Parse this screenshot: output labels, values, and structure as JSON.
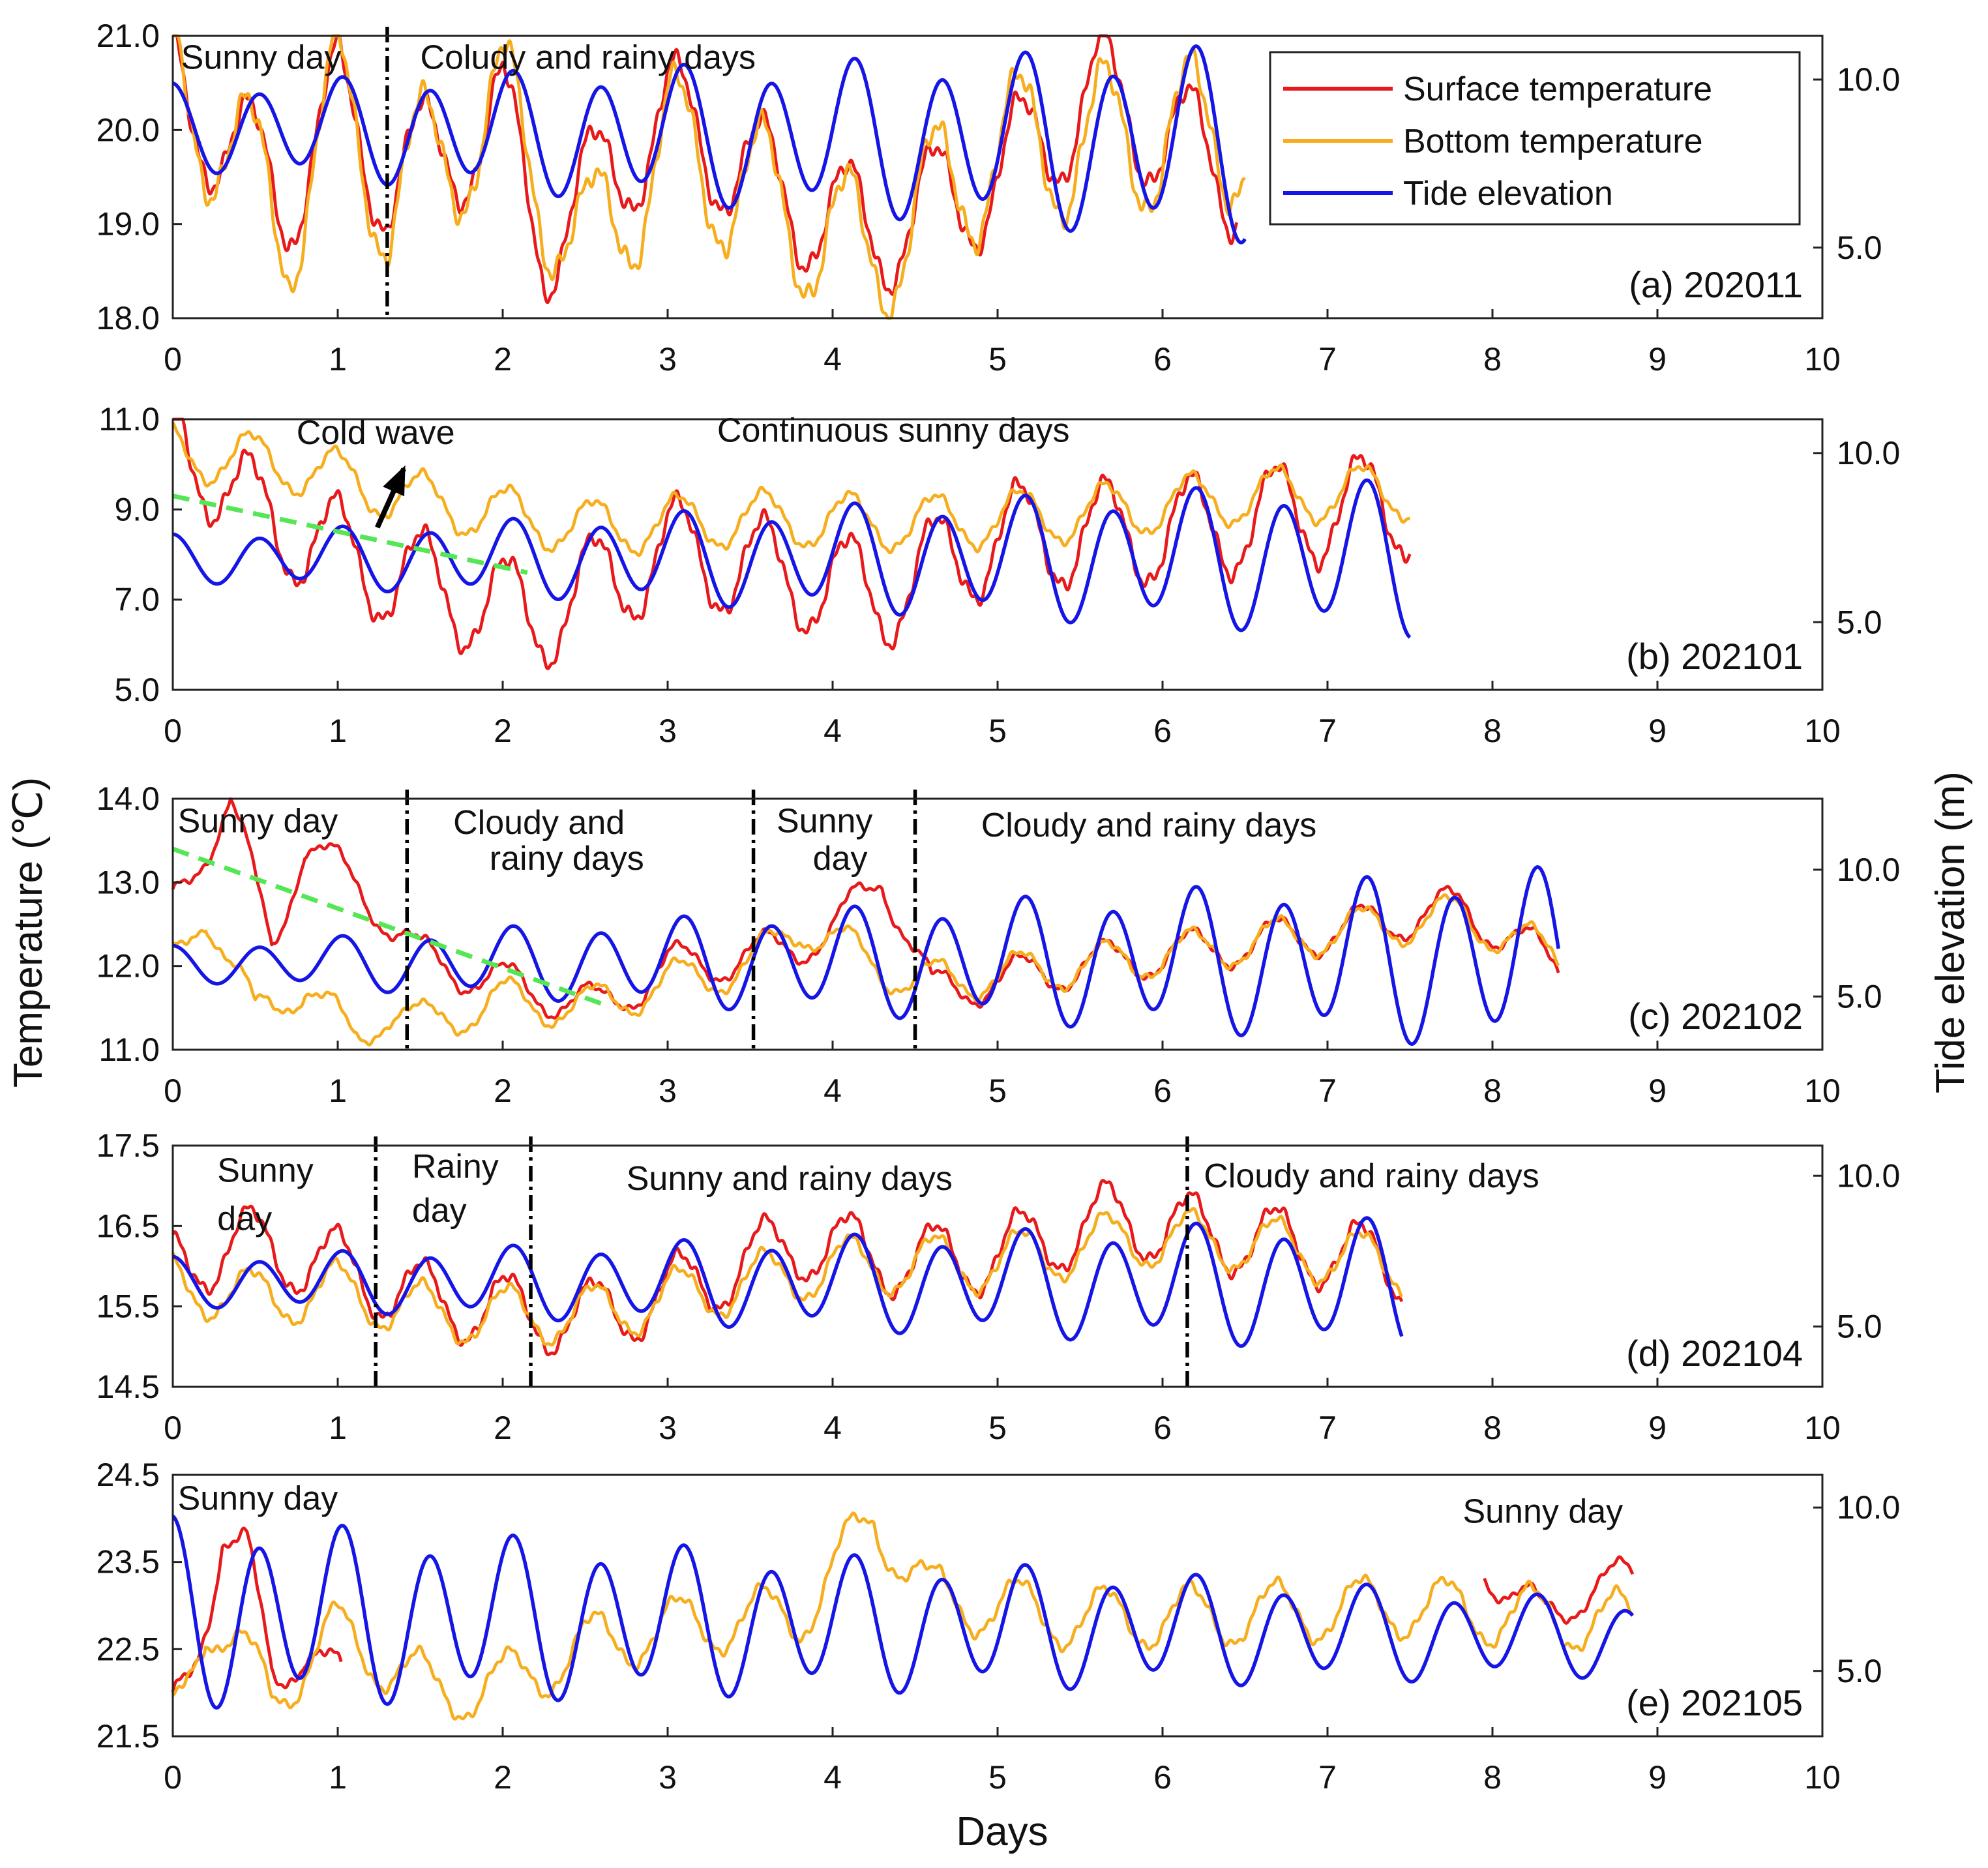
{
  "colors": {
    "surface": "#e8191b",
    "bottom": "#f6ae1e",
    "tide": "#1515e6",
    "trend": "#55e655",
    "divider": "#000000"
  },
  "axes": {
    "xlabel": "Days",
    "ylabel_left": "Temperature (℃)",
    "ylabel_right": "Tide elevation (m)"
  },
  "legend": [
    {
      "label": "Surface  temperature",
      "key": "surface"
    },
    {
      "label": "Bottom temperature",
      "key": "bottom"
    },
    {
      "label": "Tide elevation",
      "key": "tide"
    }
  ],
  "chart_data": [
    {
      "type": "line",
      "panel_label": "(a) 202011",
      "xlim": [
        0,
        10
      ],
      "x_ticks": [
        "0",
        "1",
        "2",
        "3",
        "4",
        "5",
        "6",
        "7",
        "8",
        "9",
        "10"
      ],
      "ylim": [
        18.0,
        21.0
      ],
      "y_ticks": [
        "18.0",
        "19.0",
        "20.0",
        "21.0"
      ],
      "y2lim": [
        2.9,
        11.3
      ],
      "y2_ticks": [
        "5.0",
        "10.0"
      ],
      "dividers": [
        1.3
      ],
      "annotations": [
        {
          "text": "Sunny day",
          "x": 0.05,
          "y": 20.65
        },
        {
          "text": "Coludy and rainy days",
          "x": 1.5,
          "y": 20.65
        }
      ],
      "series": [
        {
          "name": "Surface temperature",
          "key": "surface",
          "end": 6.45,
          "mean": 19.75,
          "amp": 0.65,
          "phase": 0.55,
          "anchors": [
            [
              0,
              20.55
            ],
            [
              0.3,
              19.9
            ],
            [
              0.7,
              19.3
            ],
            [
              1.0,
              20.3
            ],
            [
              1.3,
              19.45
            ],
            [
              2.0,
              20.1
            ],
            [
              2.25,
              18.85
            ],
            [
              3.0,
              20.15
            ],
            [
              3.8,
              19.2
            ],
            [
              4.25,
              18.9
            ],
            [
              5.0,
              19.5
            ],
            [
              5.6,
              20.4
            ],
            [
              6.4,
              19.55
            ]
          ]
        },
        {
          "name": "Bottom temperature",
          "key": "bottom",
          "end": 6.5,
          "mean": 19.55,
          "amp": 0.8,
          "phase": 0.55,
          "anchors": [
            [
              0,
              20.6
            ],
            [
              0.7,
              19.0
            ],
            [
              1.0,
              20.3
            ],
            [
              1.3,
              19.3
            ],
            [
              2.0,
              20.2
            ],
            [
              2.5,
              18.65
            ],
            [
              3.0,
              19.85
            ],
            [
              4.2,
              18.65
            ],
            [
              5.0,
              19.8
            ],
            [
              6.45,
              20.0
            ]
          ]
        },
        {
          "name": "Tide elevation",
          "key": "tide",
          "end": 6.5,
          "mean": 7.8,
          "amp": 1.1,
          "amp_end": 2.5,
          "phase": 0,
          "anchors": [
            [
              0,
              8.6
            ],
            [
              6.5,
              8.1
            ]
          ]
        }
      ]
    },
    {
      "type": "line",
      "panel_label": "(b) 202101",
      "xlim": [
        0,
        10
      ],
      "x_ticks": [
        "0",
        "1",
        "2",
        "3",
        "4",
        "5",
        "6",
        "7",
        "8",
        "9",
        "10"
      ],
      "ylim": [
        5.0,
        11.0
      ],
      "y_ticks": [
        "5.0",
        "7.0",
        "9.0",
        "11.0"
      ],
      "y2lim": [
        3.0,
        11.0
      ],
      "y2_ticks": [
        "5.0",
        "10.0"
      ],
      "dividers": [],
      "trend": [
        [
          0,
          9.3
        ],
        [
          2.15,
          7.6
        ]
      ],
      "annotations": [
        {
          "text": "Cold wave",
          "x": 0.75,
          "y": 10.45
        },
        {
          "text": "Continuous  sunny days",
          "x": 3.3,
          "y": 10.5
        }
      ],
      "arrow": {
        "from": [
          1.24,
          8.6
        ],
        "to": [
          1.4,
          9.9
        ]
      },
      "series": [
        {
          "name": "Surface temperature",
          "key": "surface",
          "end": 7.5,
          "mean": 8.2,
          "amp": 1.15,
          "phase": 0.5,
          "anchors": [
            [
              0,
              10.8
            ],
            [
              0.5,
              8.9
            ],
            [
              1.3,
              7.6
            ],
            [
              2.2,
              6.6
            ],
            [
              3.0,
              8.1
            ],
            [
              4.3,
              7.1
            ],
            [
              5.0,
              8.4
            ],
            [
              6.0,
              8.5
            ],
            [
              7.0,
              9.0
            ],
            [
              7.5,
              9.1
            ]
          ]
        },
        {
          "name": "Bottom temperature",
          "key": "bottom",
          "end": 7.5,
          "mean": 9.0,
          "amp": 0.6,
          "phase": 0.5,
          "anchors": [
            [
              0,
              10.3
            ],
            [
              0.7,
              10.0
            ],
            [
              1.5,
              9.2
            ],
            [
              2.5,
              8.6
            ],
            [
              3.5,
              8.8
            ],
            [
              4.5,
              8.7
            ],
            [
              5.5,
              8.9
            ],
            [
              6.5,
              9.3
            ],
            [
              7.5,
              9.4
            ]
          ]
        },
        {
          "name": "Tide elevation",
          "key": "tide",
          "end": 7.5,
          "mean": 6.9,
          "amp": 0.6,
          "amp_end": 2.0,
          "phase": 0,
          "anchors": [
            [
              0,
              6.9
            ],
            [
              7.5,
              6.9
            ]
          ]
        }
      ]
    },
    {
      "type": "line",
      "panel_label": "(c) 202102",
      "xlim": [
        0,
        10
      ],
      "x_ticks": [
        "0",
        "1",
        "2",
        "3",
        "4",
        "5",
        "6",
        "7",
        "8",
        "9",
        "10"
      ],
      "ylim": [
        11.0,
        14.0
      ],
      "y_ticks": [
        "11.0",
        "12.0",
        "13.0",
        "14.0"
      ],
      "y2lim": [
        2.9,
        12.8
      ],
      "y2_ticks": [
        "5.0",
        "10.0"
      ],
      "dividers": [
        1.42,
        3.52,
        4.5
      ],
      "trend": [
        [
          0,
          13.4
        ],
        [
          2.6,
          11.55
        ]
      ],
      "annotations": [
        {
          "text": "Sunny day",
          "x": 0.03,
          "y": 13.6
        },
        {
          "text": "Cloudy and",
          "x": 1.7,
          "y": 13.58
        },
        {
          "text": "rainy days",
          "x": 1.92,
          "y": 13.15
        },
        {
          "text": "Sunny",
          "x": 3.66,
          "y": 13.6
        },
        {
          "text": "day",
          "x": 3.88,
          "y": 13.15
        },
        {
          "text": "Cloudy and rainy days",
          "x": 4.9,
          "y": 13.55
        }
      ],
      "series": [
        {
          "name": "Surface temperature",
          "key": "surface",
          "end": 8.4,
          "mean": 12.2,
          "amp": 0.25,
          "phase": 0.5,
          "anchors": [
            [
              0,
              12.7
            ],
            [
              0.35,
              14.0
            ],
            [
              0.6,
              12.2
            ],
            [
              0.8,
              13.5
            ],
            [
              1.2,
              12.8
            ],
            [
              1.5,
              12.1
            ],
            [
              2.0,
              11.8
            ],
            [
              2.6,
              11.5
            ],
            [
              3.0,
              12.0
            ],
            [
              3.5,
              12.1
            ],
            [
              4.0,
              12.4
            ],
            [
              4.3,
              13.1
            ],
            [
              4.6,
              11.7
            ],
            [
              5.5,
              12.0
            ],
            [
              7.0,
              12.4
            ],
            [
              7.8,
              12.7
            ],
            [
              8.4,
              12.0
            ]
          ]
        },
        {
          "name": "Bottom temperature",
          "key": "bottom",
          "end": 8.4,
          "mean": 12.0,
          "amp": 0.25,
          "phase": 0.5,
          "anchors": [
            [
              0,
              12.0
            ],
            [
              0.2,
              12.7
            ],
            [
              0.5,
              11.4
            ],
            [
              0.8,
              11.8
            ],
            [
              1.1,
              11.1
            ],
            [
              1.3,
              11.5
            ],
            [
              1.5,
              11.3
            ],
            [
              2.0,
              11.6
            ],
            [
              2.5,
              11.5
            ],
            [
              3.0,
              11.8
            ],
            [
              3.5,
              12.0
            ],
            [
              3.8,
              12.5
            ],
            [
              4.5,
              11.8
            ],
            [
              5.5,
              12.0
            ],
            [
              7.0,
              12.4
            ],
            [
              7.8,
              12.6
            ],
            [
              8.4,
              12.1
            ]
          ]
        },
        {
          "name": "Tide elevation",
          "key": "tide",
          "end": 8.4,
          "mean": 6.5,
          "amp": 0.6,
          "amp_end": 3.1,
          "phase": 0,
          "anchors": [
            [
              0,
              6.3
            ],
            [
              8.4,
              6.5
            ]
          ]
        }
      ]
    },
    {
      "type": "line",
      "panel_label": "(d) 202104",
      "xlim": [
        0,
        10
      ],
      "x_ticks": [
        "0",
        "1",
        "2",
        "3",
        "4",
        "5",
        "6",
        "7",
        "8",
        "9",
        "10"
      ],
      "ylim": [
        14.5,
        17.5
      ],
      "y_ticks": [
        "14.5",
        "15.5",
        "16.5",
        "17.5"
      ],
      "y2lim": [
        3.0,
        11.0
      ],
      "y2_ticks": [
        "5.0",
        "10.0"
      ],
      "dividers": [
        1.23,
        2.17,
        6.15
      ],
      "annotations": [
        {
          "text": "Sunny",
          "x": 0.27,
          "y": 17.05
        },
        {
          "text": "day",
          "x": 0.27,
          "y": 16.45
        },
        {
          "text": "Rainy",
          "x": 1.45,
          "y": 17.1
        },
        {
          "text": "day",
          "x": 1.45,
          "y": 16.55
        },
        {
          "text": "Sunny and rainy days",
          "x": 2.75,
          "y": 16.95
        },
        {
          "text": "Cloudy and rainy days",
          "x": 6.25,
          "y": 16.98
        }
      ],
      "series": [
        {
          "name": "Surface temperature",
          "key": "surface",
          "end": 7.45,
          "mean": 15.9,
          "amp": 0.45,
          "phase": 0.5,
          "anchors": [
            [
              0,
              16.0
            ],
            [
              0.4,
              16.3
            ],
            [
              1.0,
              16.0
            ],
            [
              1.5,
              15.6
            ],
            [
              2.0,
              15.45
            ],
            [
              2.5,
              15.35
            ],
            [
              3.0,
              15.65
            ],
            [
              3.8,
              16.3
            ],
            [
              4.5,
              16.05
            ],
            [
              5.0,
              16.15
            ],
            [
              5.7,
              16.6
            ],
            [
              6.3,
              16.4
            ],
            [
              7.0,
              16.2
            ],
            [
              7.45,
              15.95
            ]
          ]
        },
        {
          "name": "Bottom temperature",
          "key": "bottom",
          "end": 7.45,
          "mean": 15.8,
          "amp": 0.35,
          "phase": 0.5,
          "anchors": [
            [
              0,
              15.8
            ],
            [
              0.5,
              15.6
            ],
            [
              1.0,
              15.7
            ],
            [
              1.6,
              15.4
            ],
            [
              2.5,
              15.4
            ],
            [
              3.0,
              15.6
            ],
            [
              4.0,
              16.0
            ],
            [
              5.0,
              16.05
            ],
            [
              5.8,
              16.35
            ],
            [
              6.5,
              16.3
            ],
            [
              7.45,
              16.0
            ]
          ]
        },
        {
          "name": "Tide elevation",
          "key": "tide",
          "end": 7.45,
          "mean": 6.5,
          "amp": 0.7,
          "amp_end": 1.9,
          "phase": 0,
          "anchors": [
            [
              0,
              6.5
            ],
            [
              7.45,
              6.4
            ]
          ]
        }
      ]
    },
    {
      "type": "line",
      "panel_label": "(e) 202105",
      "xlim": [
        0,
        10
      ],
      "x_ticks": [
        "0",
        "1",
        "2",
        "3",
        "4",
        "5",
        "6",
        "7",
        "8",
        "9",
        "10"
      ],
      "ylim": [
        21.5,
        24.5
      ],
      "y_ticks": [
        "21.5",
        "22.5",
        "23.5",
        "24.5"
      ],
      "y2lim": [
        3.0,
        11.0
      ],
      "y2_ticks": [
        "5.0",
        "10.0"
      ],
      "dividers": [],
      "annotations": [
        {
          "text": "Sunny day",
          "x": 0.03,
          "y": 24.1
        },
        {
          "text": "Sunny day",
          "x": 7.82,
          "y": 23.95
        }
      ],
      "series": [
        {
          "name": "Surface temperature",
          "key": "surface",
          "end": 1.02,
          "start": 0,
          "mean": 22.6,
          "amp": 0.35,
          "phase": 0.5,
          "anchors": [
            [
              0,
              21.7
            ],
            [
              0.15,
              22.6
            ],
            [
              0.3,
              23.8
            ],
            [
              0.45,
              23.5
            ],
            [
              0.6,
              22.2
            ],
            [
              0.8,
              22.6
            ],
            [
              1.02,
              22.0
            ]
          ]
        },
        {
          "name": "Surface temperature",
          "key": "surface",
          "start": 7.95,
          "end": 8.85,
          "mean": 23.1,
          "amp": 0.25,
          "phase": 0.5,
          "anchors": [
            [
              7.95,
              23.5
            ],
            [
              8.1,
              23.1
            ],
            [
              8.3,
              22.9
            ],
            [
              8.6,
              23.2
            ],
            [
              8.85,
              23.3
            ]
          ]
        },
        {
          "name": "Bottom temperature",
          "key": "bottom",
          "end": 8.85,
          "mean": 22.7,
          "amp": 0.35,
          "phase": 0.55,
          "anchors": [
            [
              0,
              21.65
            ],
            [
              0.2,
              22.9
            ],
            [
              0.6,
              22.0
            ],
            [
              1.0,
              22.7
            ],
            [
              1.6,
              22.0
            ],
            [
              2.0,
              22.1
            ],
            [
              2.6,
              22.6
            ],
            [
              3.2,
              22.8
            ],
            [
              3.8,
              22.9
            ],
            [
              4.25,
              24.0
            ],
            [
              4.6,
              23.1
            ],
            [
              5.5,
              22.85
            ],
            [
              6.5,
              22.9
            ],
            [
              7.5,
              23.0
            ],
            [
              8.0,
              22.9
            ],
            [
              8.85,
              22.8
            ]
          ]
        },
        {
          "name": "Tide elevation",
          "key": "tide",
          "end": 8.85,
          "mean": 7.0,
          "amp": 2.5,
          "amp_end": 1.0,
          "phase": 0,
          "anchors": [
            [
              0,
              6.8
            ],
            [
              8.85,
              6.0
            ]
          ]
        }
      ]
    }
  ]
}
